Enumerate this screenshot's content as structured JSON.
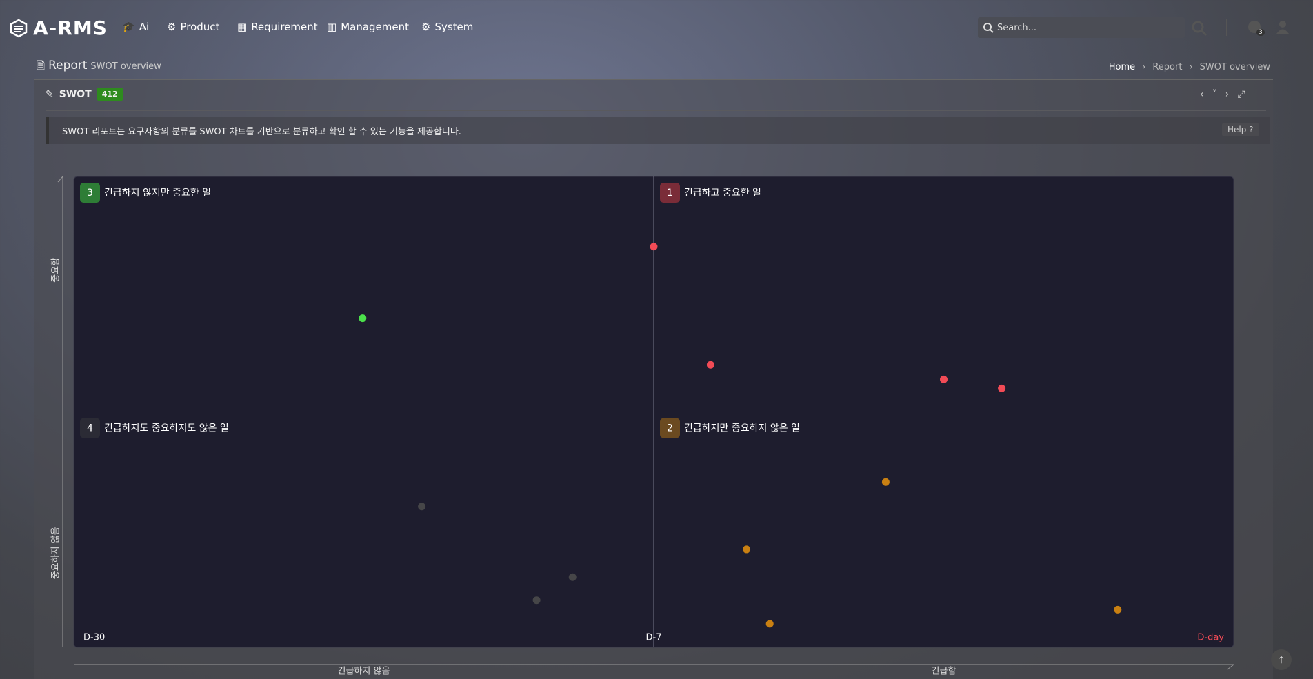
{
  "header": {
    "logo": "A-RMS",
    "nav": [
      "Ai",
      "Product",
      "Requirement",
      "Management",
      "System"
    ],
    "search_placeholder": "Search...",
    "notification_count": 3
  },
  "page": {
    "title": "Report",
    "subtitle": "SWOT overview",
    "breadcrumb": [
      "Home",
      "Report",
      "SWOT overview"
    ]
  },
  "panel": {
    "title": "SWOT",
    "count": 412,
    "description": "SWOT 리포트는 요구사항의 분류를 SWOT 차트를 기반으로 분류하고 확인 할 수 있는 기능을 제공합니다.",
    "help": "Help"
  },
  "chart_data": {
    "type": "scatter",
    "x_axis_labels": [
      "긴급하지 않음",
      "긴급함"
    ],
    "y_axis_labels": [
      "중요함",
      "중요하지 않음"
    ],
    "xlim": [
      0,
      100
    ],
    "ylim": [
      0,
      100
    ],
    "xticks": [
      {
        "value": 0,
        "label": "D-30"
      },
      {
        "value": 50,
        "label": "D-7"
      },
      {
        "value": 100,
        "label": "D-day"
      }
    ],
    "series": [
      {
        "badge": 1,
        "name": "긴급하고 중요한 일",
        "color": "#f24b56",
        "badge_color": "#7a2c38",
        "x": [
          50.0,
          54.9,
          75.0,
          80.0
        ],
        "values": [
          85.1,
          60.0,
          56.9,
          55.0
        ]
      },
      {
        "badge": 2,
        "name": "긴급하지만 중요하지 않은 일",
        "color": "#c98012",
        "badge_color": "#6b4a20",
        "x": [
          70.0,
          58.0,
          60.0,
          90.0
        ],
        "values": [
          35.1,
          20.8,
          5.0,
          8.0
        ]
      },
      {
        "badge": 3,
        "name": "긴급하지 않지만 중요한 일",
        "color": "#4be04b",
        "badge_color": "#2e7d36",
        "x": [
          24.9
        ],
        "values": [
          69.9
        ]
      },
      {
        "badge": 4,
        "name": "긴급하지도 중요하지도 않은 일",
        "color": "#464648",
        "badge_color": "#2b2b35",
        "x": [
          30.0,
          43.0,
          39.9
        ],
        "values": [
          29.9,
          14.9,
          10.0
        ]
      }
    ]
  }
}
